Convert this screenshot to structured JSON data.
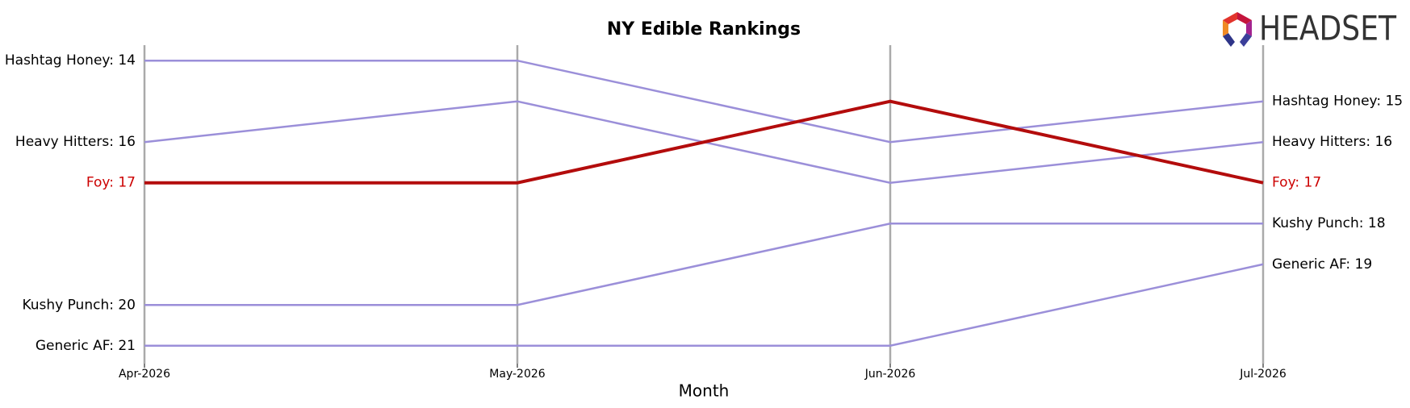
{
  "chart_data": {
    "type": "bump",
    "title": "NY Edible Rankings",
    "x_label": "Month",
    "logo": "HEADSET",
    "categories": [
      "Apr-2026",
      "May-2026",
      "Jun-2026",
      "Jul-2026"
    ],
    "ylim": [
      21.44,
      13.62
    ],
    "y_inverted": true,
    "grid": true,
    "series": [
      {
        "name": "Hashtag Honey",
        "color": "#9b8fd9",
        "values": [
          14,
          14,
          16,
          15
        ],
        "start_label": "Hashtag Honey: 14",
        "end_label": "Hashtag Honey: 15"
      },
      {
        "name": "Heavy Hitters",
        "color": "#9b8fd9",
        "values": [
          16,
          15,
          17,
          16
        ],
        "start_label": "Heavy Hitters: 16",
        "end_label": "Heavy Hitters: 16"
      },
      {
        "name": "Foy",
        "color": "#b30c0c",
        "label_color": "#cc0000",
        "highlight": true,
        "values": [
          17,
          17,
          15,
          17
        ],
        "start_label": "Foy: 17",
        "end_label": "Foy: 17"
      },
      {
        "name": "Kushy Punch",
        "color": "#9b8fd9",
        "values": [
          20,
          20,
          18,
          18
        ],
        "start_label": "Kushy Punch: 20",
        "end_label": "Kushy Punch: 18"
      },
      {
        "name": "Generic AF",
        "color": "#9b8fd9",
        "values": [
          21,
          21,
          21,
          19
        ],
        "start_label": "Generic AF: 21",
        "end_label": "Generic AF: 19"
      }
    ]
  }
}
